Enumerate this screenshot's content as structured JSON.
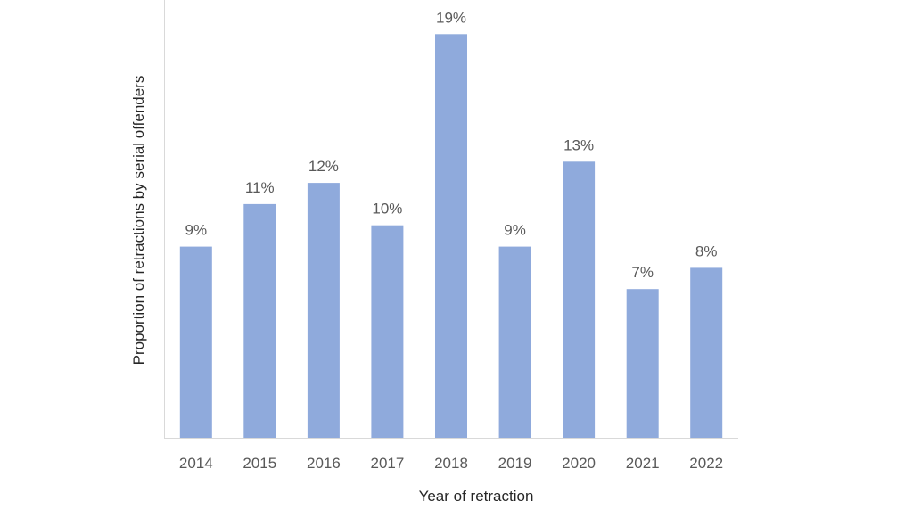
{
  "chart_data": {
    "type": "bar",
    "categories": [
      "2014",
      "2015",
      "2016",
      "2017",
      "2018",
      "2019",
      "2020",
      "2021",
      "2022"
    ],
    "values": [
      9,
      11,
      12,
      10,
      19,
      9,
      13,
      7,
      8
    ],
    "data_labels": [
      "9%",
      "11%",
      "12%",
      "10%",
      "19%",
      "9%",
      "13%",
      "7%",
      "8%"
    ],
    "unit": "%",
    "xlabel": "Year of retraction",
    "ylabel": "Proportion of retractions by serial offenders",
    "title": "",
    "ylim": [
      0,
      19.6
    ],
    "grid": false,
    "legend": "none",
    "bar_color": "#8FAADC",
    "axis_color": "#D9D9D9"
  }
}
